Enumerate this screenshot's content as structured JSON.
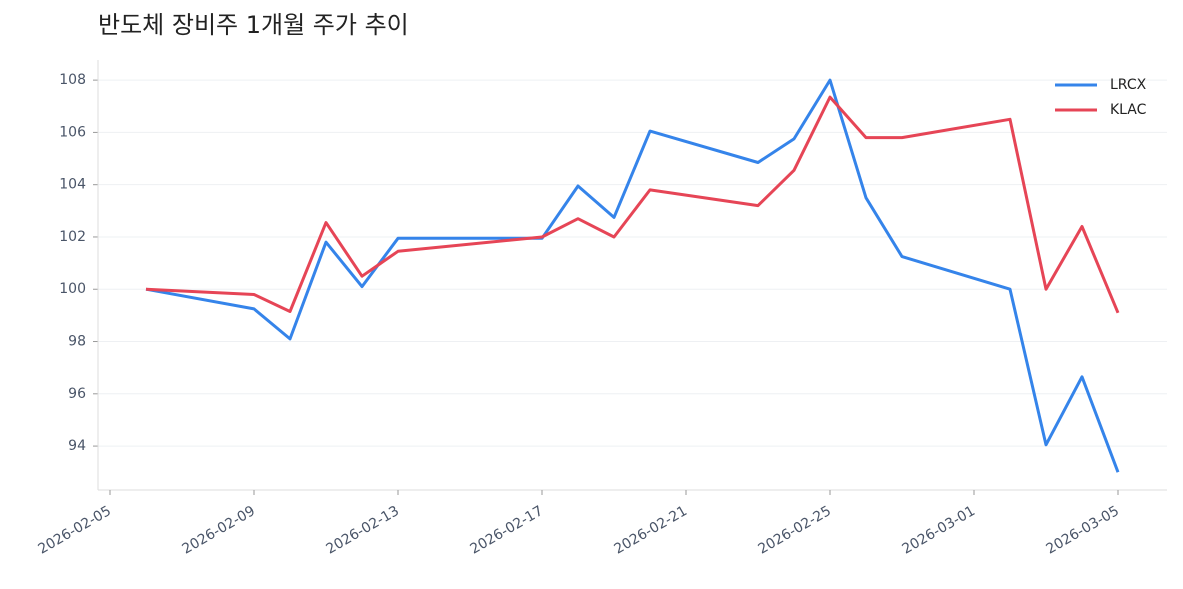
{
  "chart_data": {
    "type": "line",
    "title": "반도체 장비주 1개월 주가 추이",
    "x": [
      "2026-02-06",
      "2026-02-09",
      "2026-02-10",
      "2026-02-11",
      "2026-02-12",
      "2026-02-13",
      "2026-02-17",
      "2026-02-18",
      "2026-02-19",
      "2026-02-20",
      "2026-02-23",
      "2026-02-24",
      "2026-02-25",
      "2026-02-26",
      "2026-02-27",
      "2026-03-02",
      "2026-03-03",
      "2026-03-04",
      "2026-03-05"
    ],
    "series": [
      {
        "name": "LRCX",
        "color": "#3584ea",
        "values": [
          100.0,
          99.25,
          98.1,
          101.8,
          100.1,
          101.95,
          101.95,
          103.95,
          102.75,
          106.05,
          104.85,
          105.75,
          108.0,
          103.5,
          101.25,
          100.0,
          94.05,
          96.65,
          93.0
        ]
      },
      {
        "name": "KLAC",
        "color": "#e64556",
        "values": [
          100.0,
          99.8,
          99.15,
          102.55,
          100.5,
          101.45,
          102.0,
          102.7,
          102.0,
          103.8,
          103.2,
          104.55,
          107.35,
          105.8,
          105.8,
          106.5,
          100.0,
          102.4,
          99.1
        ]
      }
    ],
    "xlim": [
      "2026-02-05",
      "2026-03-05"
    ],
    "xticks": [
      "2026-02-05",
      "2026-02-09",
      "2026-02-13",
      "2026-02-17",
      "2026-02-21",
      "2026-02-25",
      "2026-03-01",
      "2026-03-05"
    ],
    "ylim": [
      92.32,
      108.77
    ],
    "yticks": [
      94,
      96,
      98,
      100,
      102,
      104,
      106,
      108
    ],
    "grid": true,
    "legend": "upper right"
  }
}
